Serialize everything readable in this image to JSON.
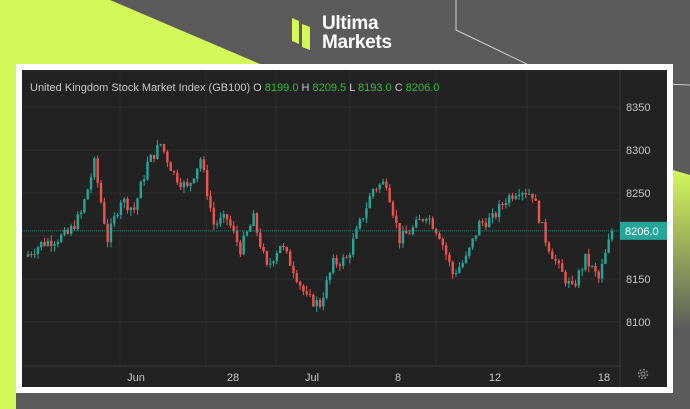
{
  "brand": {
    "line1": "Ultima",
    "line2": "Markets",
    "accent": "#d4f75a"
  },
  "chart_data": {
    "type": "candlestick",
    "title": "United Kingdom Stock Market Index (GB100)",
    "ohlc": {
      "o_label": "O",
      "o": "8199.0",
      "h_label": "H",
      "h": "8209.5",
      "l_label": "L",
      "l": "8193.0",
      "c_label": "C",
      "c": "8206.0"
    },
    "y_ticks": [
      8350,
      8300,
      8250,
      8200,
      8150,
      8100
    ],
    "y_tick_labels": [
      "8350",
      "8300",
      "8250",
      "8150",
      "8100"
    ],
    "ylim": [
      8050,
      8400
    ],
    "last_price": 8206.0,
    "last_price_label": "8206.0",
    "x_tick_labels": [
      "Jun",
      "28",
      "Jul",
      "8",
      "12",
      "18"
    ],
    "grid": true,
    "closes": [
      8179,
      8191,
      8196,
      8202,
      8226,
      8284,
      8196,
      8243,
      8231,
      8284,
      8307,
      8272,
      8255,
      8290,
      8214,
      8220,
      8185,
      8220,
      8162,
      8191,
      8162,
      8127,
      8121,
      8168,
      8173,
      8214,
      8255,
      8263,
      8196,
      8208,
      8226,
      8202,
      8156,
      8173,
      8214,
      8220,
      8243,
      8255,
      8249,
      8196,
      8162,
      8138,
      8173,
      8150,
      8206
    ],
    "colors": {
      "up": "#26a69a",
      "down": "#ef5350",
      "background": "#222222"
    }
  }
}
